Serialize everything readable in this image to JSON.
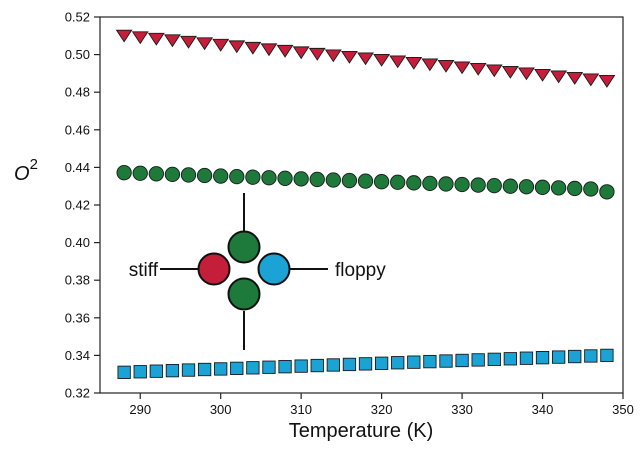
{
  "chart_data": {
    "type": "scatter",
    "xlabel": "Temperature (K)",
    "ylabel": "O",
    "ylabel_superscript": "2",
    "xlim": [
      285,
      350
    ],
    "ylim": [
      0.32,
      0.52
    ],
    "xticks": [
      290,
      300,
      310,
      320,
      330,
      340,
      350
    ],
    "yticks": [
      0.32,
      0.34,
      0.36,
      0.38,
      0.4,
      0.42,
      0.44,
      0.46,
      0.48,
      0.5,
      0.52
    ],
    "xtick_labels": [
      "290",
      "300",
      "310",
      "320",
      "330",
      "340",
      "350"
    ],
    "ytick_labels": [
      "0.32",
      "0.34",
      "0.36",
      "0.38",
      "0.40",
      "0.42",
      "0.44",
      "0.46",
      "0.48",
      "0.50",
      "0.52"
    ],
    "grid": false,
    "x": [
      288,
      290,
      292,
      294,
      296,
      298,
      300,
      302,
      304,
      306,
      308,
      310,
      312,
      314,
      316,
      318,
      320,
      322,
      324,
      326,
      328,
      330,
      332,
      334,
      336,
      338,
      340,
      342,
      344,
      346,
      348
    ],
    "series": [
      {
        "marker": "triangle-down",
        "color": "#c41e3a",
        "values": [
          0.5105,
          0.5096,
          0.5088,
          0.508,
          0.5072,
          0.5064,
          0.5056,
          0.5048,
          0.504,
          0.5032,
          0.5024,
          0.5016,
          0.5008,
          0.5,
          0.4992,
          0.4984,
          0.4976,
          0.4968,
          0.496,
          0.4952,
          0.4944,
          0.4936,
          0.4928,
          0.492,
          0.4912,
          0.4904,
          0.4896,
          0.4888,
          0.488,
          0.4872,
          0.4864
        ]
      },
      {
        "marker": "circle",
        "color": "#1d7a3a",
        "values": [
          0.4372,
          0.4369,
          0.4366,
          0.4363,
          0.436,
          0.4357,
          0.4354,
          0.4351,
          0.4348,
          0.4345,
          0.4342,
          0.4339,
          0.4336,
          0.4333,
          0.433,
          0.4327,
          0.4324,
          0.4321,
          0.4318,
          0.4315,
          0.4312,
          0.4309,
          0.4306,
          0.4303,
          0.43,
          0.4297,
          0.4294,
          0.4291,
          0.4288,
          0.4285,
          0.427
        ]
      },
      {
        "marker": "square",
        "color": "#1ba3d6",
        "values": [
          0.331,
          0.3313,
          0.3316,
          0.3319,
          0.3322,
          0.3325,
          0.3328,
          0.3331,
          0.3334,
          0.3337,
          0.334,
          0.3343,
          0.3346,
          0.3349,
          0.3352,
          0.3355,
          0.3358,
          0.3361,
          0.3364,
          0.3367,
          0.337,
          0.3373,
          0.3376,
          0.3379,
          0.3382,
          0.3385,
          0.3388,
          0.3391,
          0.3394,
          0.3397,
          0.34
        ]
      }
    ],
    "inset": {
      "left_label": "stiff",
      "right_label": "floppy",
      "colors": {
        "stiff": "#c41e3a",
        "floppy": "#1ba3d6",
        "middle": "#1d7a3a"
      }
    }
  }
}
